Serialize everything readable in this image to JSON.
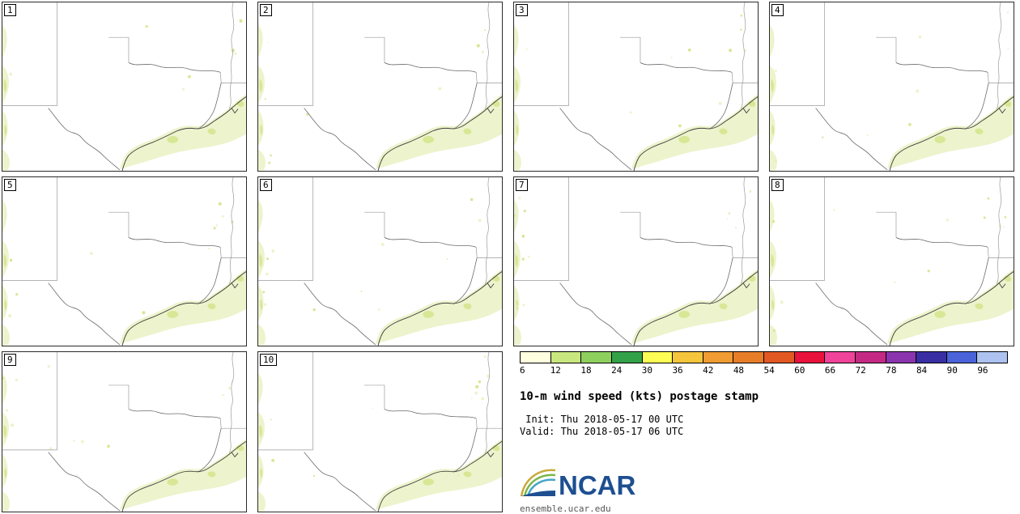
{
  "panels": [
    {
      "label": "1"
    },
    {
      "label": "2"
    },
    {
      "label": "3"
    },
    {
      "label": "4"
    },
    {
      "label": "5"
    },
    {
      "label": "6"
    },
    {
      "label": "7"
    },
    {
      "label": "8"
    },
    {
      "label": "9"
    },
    {
      "label": "10"
    }
  ],
  "colorbar": {
    "segments": [
      {
        "label": "6",
        "color": "#ffffe0"
      },
      {
        "label": "12",
        "color": "#c9e77f"
      },
      {
        "label": "18",
        "color": "#8ed05e"
      },
      {
        "label": "24",
        "color": "#33a148"
      },
      {
        "label": "30",
        "color": "#fdfd54"
      },
      {
        "label": "36",
        "color": "#f5c53c"
      },
      {
        "label": "42",
        "color": "#f09c32"
      },
      {
        "label": "48",
        "color": "#e87d28"
      },
      {
        "label": "54",
        "color": "#e25822"
      },
      {
        "label": "60",
        "color": "#e8123c"
      },
      {
        "label": "66",
        "color": "#f0439a"
      },
      {
        "label": "72",
        "color": "#c42a83"
      },
      {
        "label": "78",
        "color": "#8a35ad"
      },
      {
        "label": "84",
        "color": "#3a2ea3"
      },
      {
        "label": "90",
        "color": "#4a63d8"
      },
      {
        "label": "96",
        "color": "#aec2ef"
      }
    ]
  },
  "info": {
    "title": "10-m wind speed (kts) postage stamp",
    "init_line": " Init: Thu 2018-05-17 00 UTC",
    "valid_line": "Valid: Thu 2018-05-17 06 UTC",
    "logo_text": "NCAR",
    "url": "ensemble.ucar.edu"
  },
  "map_colors": {
    "fill_light": "#edf3cc",
    "fill_mid": "#d7e795",
    "border": "#9a9a9a",
    "river": "#6a6a6a",
    "coast": "#3f3f3f"
  },
  "chart_data": {
    "type": "heatmap",
    "subtype": "ensemble-postage-stamp-maps",
    "title": "10-m wind speed (kts) postage stamp",
    "init": "Thu 2018-05-17 00 UTC",
    "valid": "Thu 2018-05-17 06 UTC",
    "unit": "kts",
    "members": [
      1,
      2,
      3,
      4,
      5,
      6,
      7,
      8,
      9,
      10
    ],
    "colorbar_ticks": [
      6,
      12,
      18,
      24,
      30,
      36,
      42,
      48,
      54,
      60,
      66,
      72,
      78,
      84,
      90,
      96
    ],
    "region": "Texas / Gulf Coast",
    "notes": "Light 6-18 kt shading offshore along the Gulf coast and along the western map edge in all 10 members"
  }
}
